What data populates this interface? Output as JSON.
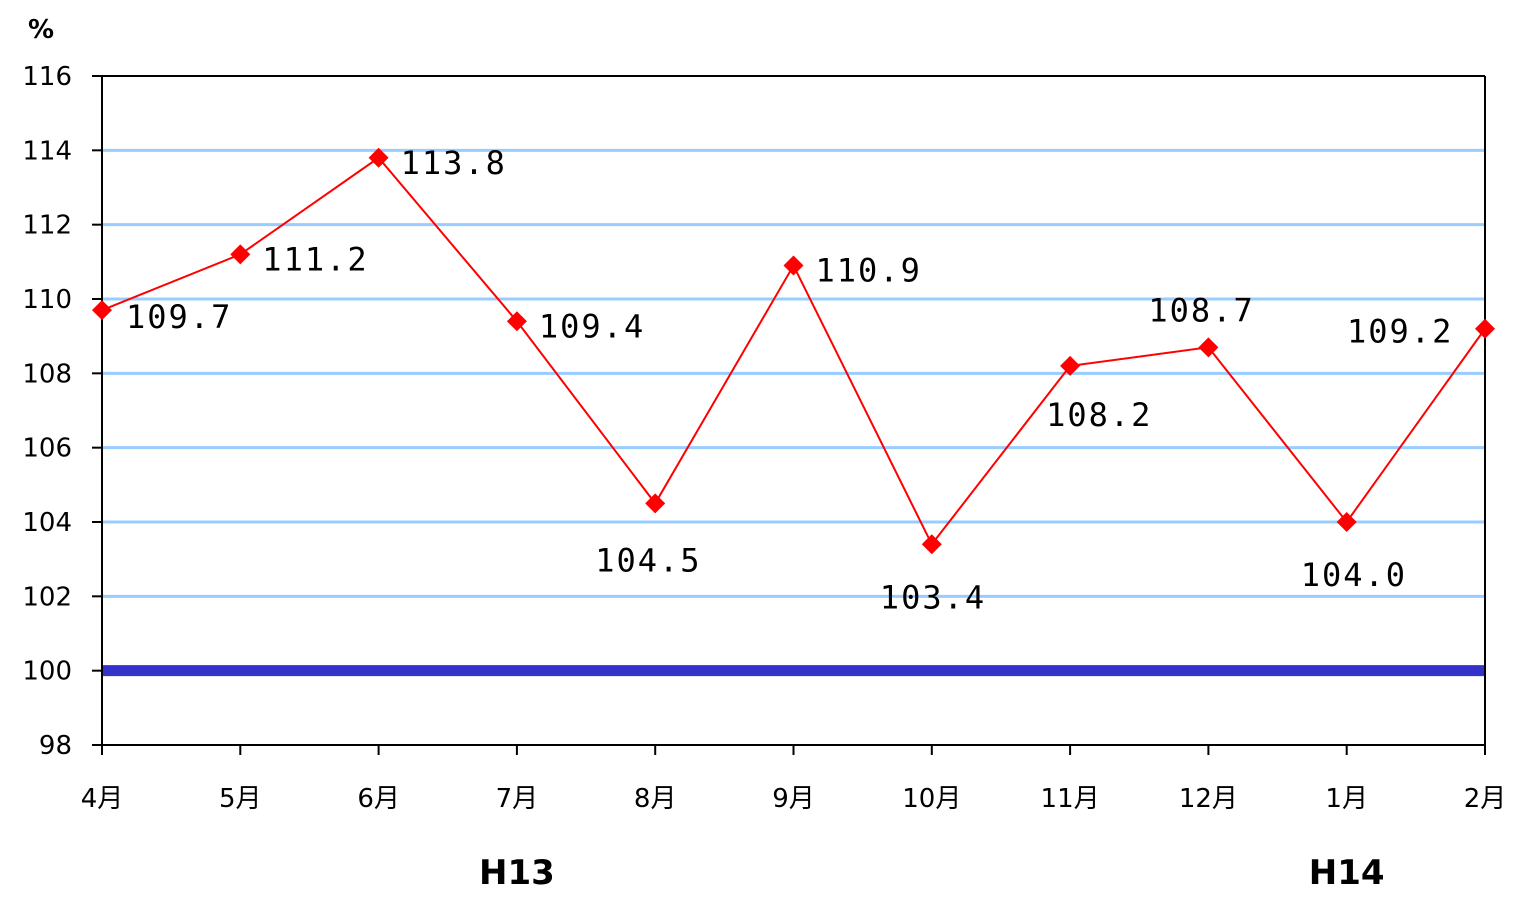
{
  "chart_data": {
    "type": "line",
    "unit_label": "%",
    "categories": [
      "4月",
      "5月",
      "6月",
      "7月",
      "8月",
      "9月",
      "10月",
      "11月",
      "12月",
      "1月",
      "2月"
    ],
    "values": [
      109.7,
      111.2,
      113.8,
      109.4,
      104.5,
      110.9,
      103.4,
      108.2,
      108.7,
      104.0,
      109.2
    ],
    "data_labels": [
      "109.7",
      "111.2",
      "113.8",
      "109.4",
      "104.5",
      "110.9",
      "103.4",
      "108.2",
      "108.7",
      "104.0",
      "109.2"
    ],
    "ylim": [
      98,
      116
    ],
    "yticks": [
      "98",
      "100",
      "102",
      "104",
      "106",
      "108",
      "110",
      "112",
      "114",
      "116"
    ],
    "reference_line": {
      "value": 100,
      "color": "#3333cc"
    },
    "gridlines": true,
    "grid_color": "#99ccff",
    "series_color": "#ff0000",
    "marker": "diamond",
    "period_labels": [
      {
        "text": "H13",
        "category_index": 3
      },
      {
        "text": "H14",
        "category_index": 9
      }
    ]
  }
}
